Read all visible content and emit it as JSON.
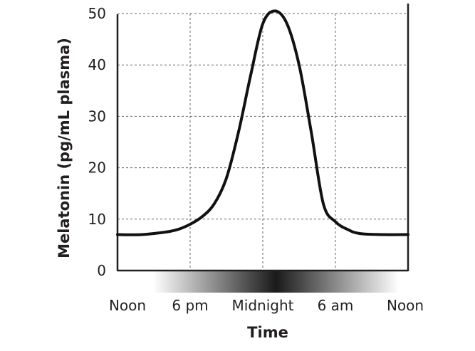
{
  "chart_data": {
    "type": "line",
    "title": "",
    "xlabel": "Time",
    "ylabel": "Melatonin (pg/mL plasma)",
    "x_tick_labels": [
      "Noon",
      "6 pm",
      "Midnight",
      "6 am",
      "Noon"
    ],
    "y_ticks": [
      0,
      10,
      20,
      30,
      40,
      50
    ],
    "ylim": [
      0,
      50
    ],
    "xlim_hours_from_noon": [
      0,
      24
    ],
    "grid": true,
    "grid_style": "dashed",
    "legend": "none",
    "line_color": "#111111",
    "night_gradient_color": "#1a1a1a",
    "series": [
      {
        "hours_from_noon": [
          0,
          2,
          4,
          5,
          6,
          7,
          8,
          9,
          10,
          11,
          12,
          13,
          14,
          15,
          16,
          17,
          18,
          19,
          20,
          22,
          24
        ],
        "values": [
          7,
          7,
          7.5,
          8,
          9,
          10.5,
          13,
          18,
          27,
          38,
          48,
          50.5,
          48,
          40,
          27,
          13,
          9.5,
          8,
          7.2,
          7,
          7
        ]
      }
    ]
  }
}
